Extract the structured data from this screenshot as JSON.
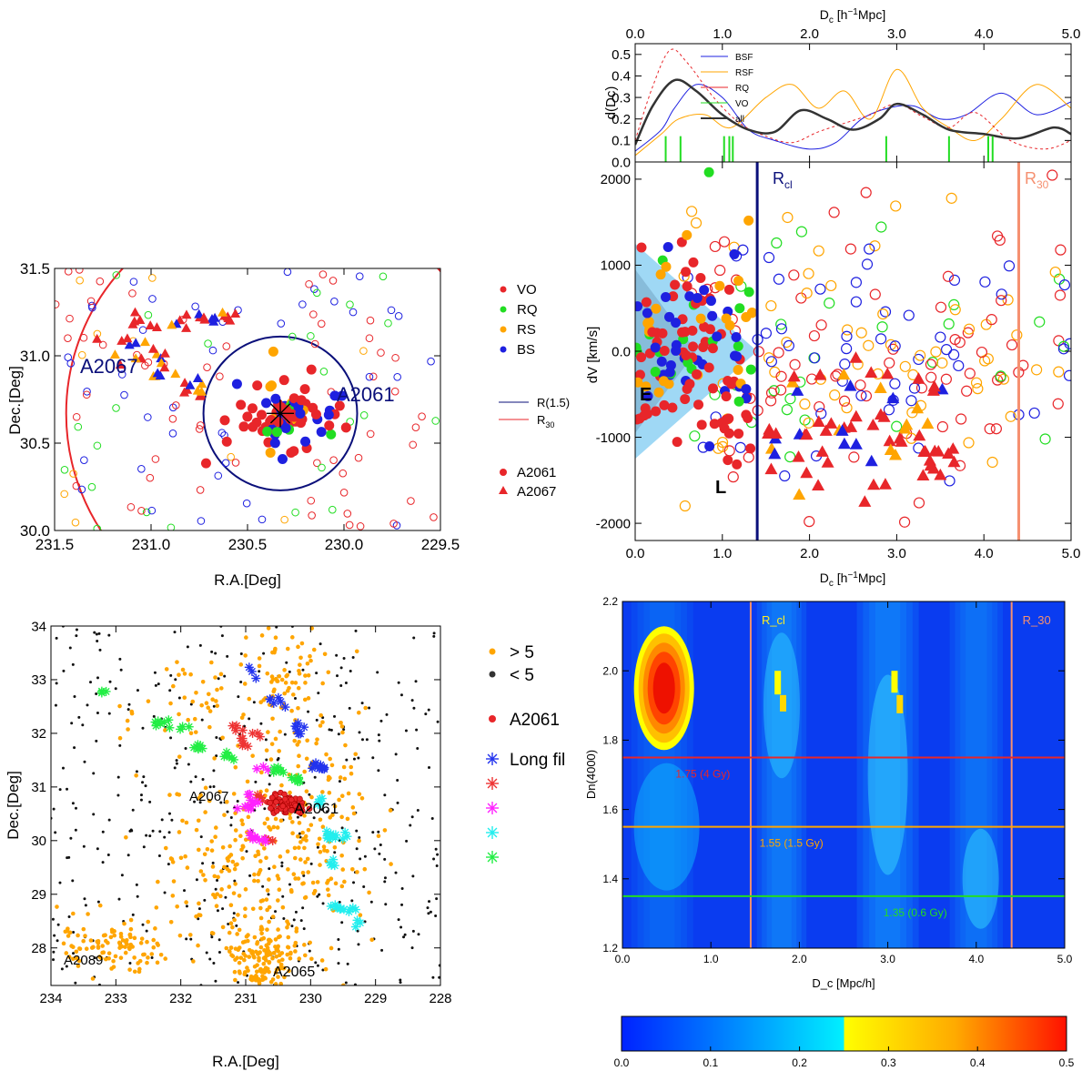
{
  "colors": {
    "VO": "#e8262a",
    "RQ": "#22dd22",
    "RS": "#ffa500",
    "BS": "#1e20e0",
    "navy": "#0a0f7a",
    "salmon": "#f59070",
    "grey": "#333333",
    "lightblue": "#9fd8f5"
  },
  "chart_data": [
    {
      "id": "sky-A2061",
      "type": "scatter",
      "xlabel": "R.A.[Deg]",
      "ylabel": "Dec.[Deg]",
      "xlim": [
        231.5,
        229.5
      ],
      "ylim": [
        30.0,
        31.5
      ],
      "xticks": [
        "231.5",
        "231.0",
        "230.5",
        "230.0",
        "229.5"
      ],
      "yticks": [
        "30.0",
        "30.5",
        "31.0",
        "31.5"
      ],
      "annotations": [
        "A2067",
        "A2061"
      ],
      "center": [
        230.33,
        30.67
      ],
      "r15_radius_deg": 0.48,
      "legend_types": [
        "VO",
        "RQ",
        "RS",
        "BS"
      ],
      "legend_lines": [
        "R(1.5)",
        "R30"
      ],
      "legend_markers": [
        "A2061",
        "A2067"
      ]
    },
    {
      "id": "density-profile",
      "type": "line",
      "xlabel": "Dc [h-1Mpc]",
      "ylabel": "d(Dc)",
      "xlim": [
        0,
        5
      ],
      "ylim": [
        0,
        0.55
      ],
      "xticks": [
        "0.0",
        "1.0",
        "2.0",
        "3.0",
        "4.0",
        "5.0"
      ],
      "yticks": [
        "0.0",
        "0.1",
        "0.2",
        "0.3",
        "0.4",
        "0.5"
      ],
      "legend": [
        "BSF",
        "RSF",
        "RQ",
        "VO",
        "all"
      ],
      "series": [
        {
          "name": "BSF",
          "x": [
            0,
            0.3,
            0.45,
            0.7,
            1.0,
            1.3,
            1.6,
            2.0,
            2.3,
            2.6,
            2.9,
            3.2,
            3.5,
            3.8,
            4.2,
            4.6,
            5.0
          ],
          "values": [
            0.05,
            0.15,
            0.25,
            0.36,
            0.3,
            0.15,
            0.1,
            0.06,
            0.09,
            0.2,
            0.25,
            0.26,
            0.2,
            0.22,
            0.32,
            0.22,
            0.28
          ]
        },
        {
          "name": "RSF",
          "x": [
            0,
            0.3,
            0.5,
            0.8,
            1.1,
            1.5,
            1.8,
            2.1,
            2.4,
            2.7,
            3.0,
            3.3,
            3.6,
            3.9,
            4.2,
            4.6,
            5.0
          ],
          "values": [
            0.03,
            0.13,
            0.2,
            0.22,
            0.16,
            0.3,
            0.36,
            0.25,
            0.33,
            0.2,
            0.43,
            0.25,
            0.16,
            0.1,
            0.2,
            0.36,
            0.25
          ]
        },
        {
          "name": "RQ",
          "x": [
            0,
            0.2,
            0.4,
            0.6,
            0.9,
            1.2,
            1.5,
            1.8,
            2.1,
            2.4,
            2.7,
            3.0,
            3.3,
            3.6,
            3.9,
            4.3,
            4.7,
            5.0
          ],
          "values": [
            0.1,
            0.35,
            0.52,
            0.46,
            0.3,
            0.18,
            0.12,
            0.09,
            0.14,
            0.18,
            0.22,
            0.27,
            0.21,
            0.16,
            0.23,
            0.1,
            0.06,
            0.1
          ]
        },
        {
          "name": "all",
          "x": [
            0,
            0.2,
            0.45,
            0.7,
            1.0,
            1.3,
            1.6,
            1.9,
            2.2,
            2.5,
            2.8,
            3.0,
            3.3,
            3.6,
            4.0,
            4.4,
            4.8,
            5.0
          ],
          "values": [
            0.08,
            0.26,
            0.38,
            0.33,
            0.22,
            0.15,
            0.14,
            0.24,
            0.2,
            0.15,
            0.2,
            0.27,
            0.22,
            0.15,
            0.13,
            0.11,
            0.16,
            0.13
          ]
        }
      ],
      "vo_ticks": [
        0.35,
        0.52,
        1.02,
        1.08,
        1.12,
        2.88,
        3.6,
        4.05,
        4.1
      ],
      "top_axis_label": "Dc [h-1Mpc]"
    },
    {
      "id": "phase-space",
      "type": "scatter",
      "xlabel": "Dc [h-1Mpc]",
      "ylabel": "dV [km/s]",
      "xlim": [
        0,
        5
      ],
      "ylim": [
        -2200,
        2200
      ],
      "xticks": [
        "0.0",
        "1.0",
        "2.0",
        "3.0",
        "4.0",
        "5.0"
      ],
      "yticks": [
        "-2000",
        "-1000",
        "0.0",
        "1000",
        "2000"
      ],
      "rcl": 1.4,
      "r30": 4.4,
      "labels": {
        "rcl": "Rcl",
        "r30": "R30",
        "early": "E",
        "late": "L"
      }
    },
    {
      "id": "sky-wide",
      "type": "scatter",
      "xlabel": "R.A.[Deg]",
      "ylabel": "Dec.[Deg]",
      "xlim": [
        234,
        228
      ],
      "ylim": [
        27.3,
        34
      ],
      "xticks": [
        "234",
        "233",
        "232",
        "231",
        "230",
        "229",
        "228"
      ],
      "yticks": [
        "28",
        "29",
        "30",
        "31",
        "32",
        "33",
        "34"
      ],
      "annotations": [
        "A2067",
        "A2061",
        "A2089",
        "A2065"
      ],
      "legend": [
        "> 5",
        "< 5",
        "A2061",
        "Long fil"
      ]
    },
    {
      "id": "heatmap-dn4000",
      "type": "heatmap",
      "xlabel": "D_c [Mpc/h]",
      "ylabel": "Dn(4000)",
      "xlim": [
        0,
        5
      ],
      "ylim": [
        1.2,
        2.2
      ],
      "xticks": [
        "0.0",
        "1.0",
        "2.0",
        "3.0",
        "4.0",
        "5.0"
      ],
      "yticks": [
        "1.2",
        "1.4",
        "1.6",
        "1.8",
        "2.0",
        "2.2"
      ],
      "vlines": [
        {
          "x": 1.45,
          "label": "R_cl"
        },
        {
          "x": 4.4,
          "label": "R_30"
        }
      ],
      "hlines": [
        {
          "y": 1.75,
          "label": "1.75 (4 Gy)",
          "color": "#e8262a"
        },
        {
          "y": 1.55,
          "label": "1.55 (1.5 Gy)",
          "color": "#ffa500"
        },
        {
          "y": 1.35,
          "label": "1.35 (0.6 Gy)",
          "color": "#22dd22"
        }
      ],
      "colorbar_range": [
        0.0,
        0.5
      ],
      "colorbar_ticks": [
        "0.0",
        "0.1",
        "0.2",
        "0.3",
        "0.4",
        "0.5"
      ]
    }
  ]
}
